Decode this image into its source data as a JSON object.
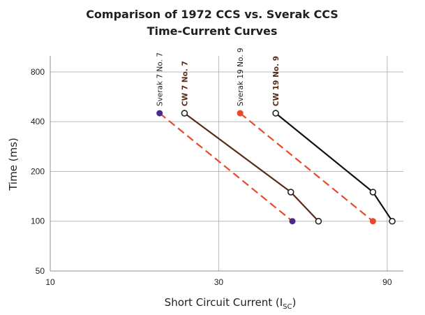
{
  "chart_data": {
    "type": "line",
    "title_line1": "Comparison of 1972 CCS vs. Sverak CCS",
    "title_line2": "Time-Current Curves",
    "xlabel_main": "Short Circuit Current (I",
    "xlabel_sub": "SC",
    "xlabel_close": ")",
    "ylabel": "Time (ms)",
    "x_scale": "log",
    "y_scale": "log",
    "xlim": [
      10,
      100
    ],
    "ylim": [
      50,
      1000
    ],
    "x_ticks": [
      10,
      30,
      90
    ],
    "y_ticks": [
      50,
      100,
      200,
      400,
      800
    ],
    "grid": true,
    "series": [
      {
        "name": "Sverak 7 No. 7",
        "style": "dashed",
        "line_color": "#e8492a",
        "marker_fill": "#4b2a8a",
        "label_color": "#1f1f1f",
        "label_bold": false,
        "points": [
          {
            "x": 20.4,
            "y": 450
          },
          {
            "x": 48.5,
            "y": 100
          }
        ]
      },
      {
        "name": "CW  7 No. 7",
        "style": "solid",
        "line_color": "#5a2a18",
        "marker_fill": "#ffffff",
        "label_color": "#5a2a18",
        "label_bold": true,
        "points": [
          {
            "x": 24.0,
            "y": 450
          },
          {
            "x": 48.0,
            "y": 150
          },
          {
            "x": 57.5,
            "y": 100
          }
        ]
      },
      {
        "name": "Sverak 19 No. 9",
        "style": "dashed",
        "line_color": "#e8492a",
        "marker_fill": "#e8492a",
        "label_color": "#1f1f1f",
        "label_bold": false,
        "points": [
          {
            "x": 34.5,
            "y": 450
          },
          {
            "x": 82.0,
            "y": 100
          }
        ]
      },
      {
        "name": "CW  19 No. 9",
        "style": "solid",
        "line_color": "#111111",
        "marker_fill": "#ffffff",
        "label_color": "#5a2a18",
        "label_bold": true,
        "points": [
          {
            "x": 43.5,
            "y": 450
          },
          {
            "x": 82.0,
            "y": 150
          },
          {
            "x": 93.0,
            "y": 100
          }
        ]
      }
    ]
  }
}
